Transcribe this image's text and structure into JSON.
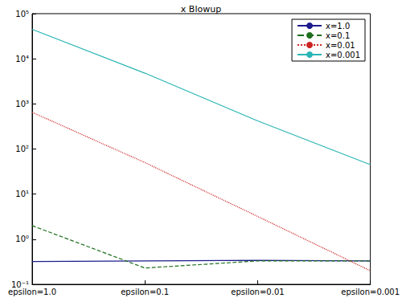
{
  "chart_data": {
    "type": "line",
    "title": "x Blowup",
    "categories": [
      "epsilon=1.0",
      "epsilon=0.1",
      "epsilon=0.01",
      "epsilon=0.001"
    ],
    "series": [
      {
        "name": "x=1.0",
        "color": "#1c1c8c",
        "line_style": "solid",
        "values": [
          0.32,
          0.33,
          0.34,
          0.33
        ]
      },
      {
        "name": "x=0.1",
        "color": "#1e6e1e",
        "line_style": "dashed",
        "values": [
          2.0,
          0.23,
          0.33,
          0.33
        ]
      },
      {
        "name": "x=0.01",
        "color": "#cc2222",
        "line_style": "dotted",
        "values": [
          650,
          50,
          3.2,
          0.2
        ]
      },
      {
        "name": "x=0.001",
        "color": "#2ab5b5",
        "line_style": "solid",
        "values": [
          45000,
          4800,
          420,
          45
        ]
      }
    ],
    "log": "y",
    "ylim": [
      0.1,
      100000
    ],
    "yticks": [
      {
        "value": 0.1,
        "label": "10⁻¹"
      },
      {
        "value": 1,
        "label": "10⁰"
      },
      {
        "value": 10,
        "label": "10¹"
      },
      {
        "value": 100,
        "label": "10²"
      },
      {
        "value": 1000,
        "label": "10³"
      },
      {
        "value": 10000,
        "label": "10⁴"
      },
      {
        "value": 100000,
        "label": "10⁵"
      }
    ],
    "grid": false,
    "legend": "upper right"
  }
}
